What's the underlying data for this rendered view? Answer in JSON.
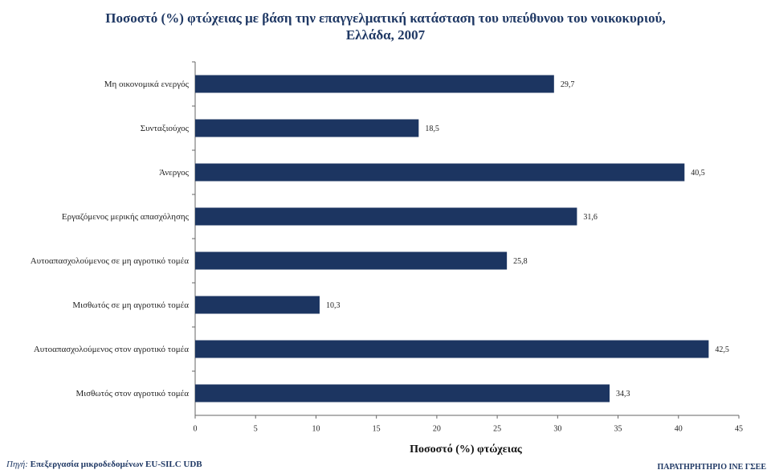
{
  "chart_data": {
    "type": "bar",
    "orientation": "horizontal",
    "title": "Ποσοστό (%) φτώχειας με βάση την επαγγελματική κατάσταση του υπεύθυνου του νοικοκυριού, Ελλάδα, 2007",
    "categories": [
      "Μη οικονομικά ενεργός",
      "Συνταξιούχος",
      "Άνεργος",
      "Εργαζόμενος μερικής απασχόλησης",
      "Αυτοαπασχολούμενος σε μη αγροτικό τομέα",
      "Μισθωτός σε μη αγροτικό τομέα",
      "Αυτοαπασχολούμενος στον αγροτικό τομέα",
      "Μισθωτός στον αγροτικό τομέα"
    ],
    "values": [
      29.7,
      18.5,
      40.5,
      31.6,
      25.8,
      10.3,
      42.5,
      34.3
    ],
    "value_labels": [
      "29,7",
      "18,5",
      "40,5",
      "31,6",
      "25,8",
      "10,3",
      "42,5",
      "34,3"
    ],
    "color": "#1c3561",
    "xlabel": "Ποσοστό (%) φτώχειας",
    "xlim": [
      0,
      45
    ],
    "xticks": [
      0,
      5,
      10,
      15,
      20,
      25,
      30,
      35,
      40,
      45
    ],
    "source_label": "Πηγή:",
    "source": "Επεξεργασία μικροδεδομένων EU-SILC UDB",
    "credit": "ΠΑΡΑΤΗΡΗΤΗΡΙΟ ΙΝΕ ΓΣΕΕ"
  }
}
